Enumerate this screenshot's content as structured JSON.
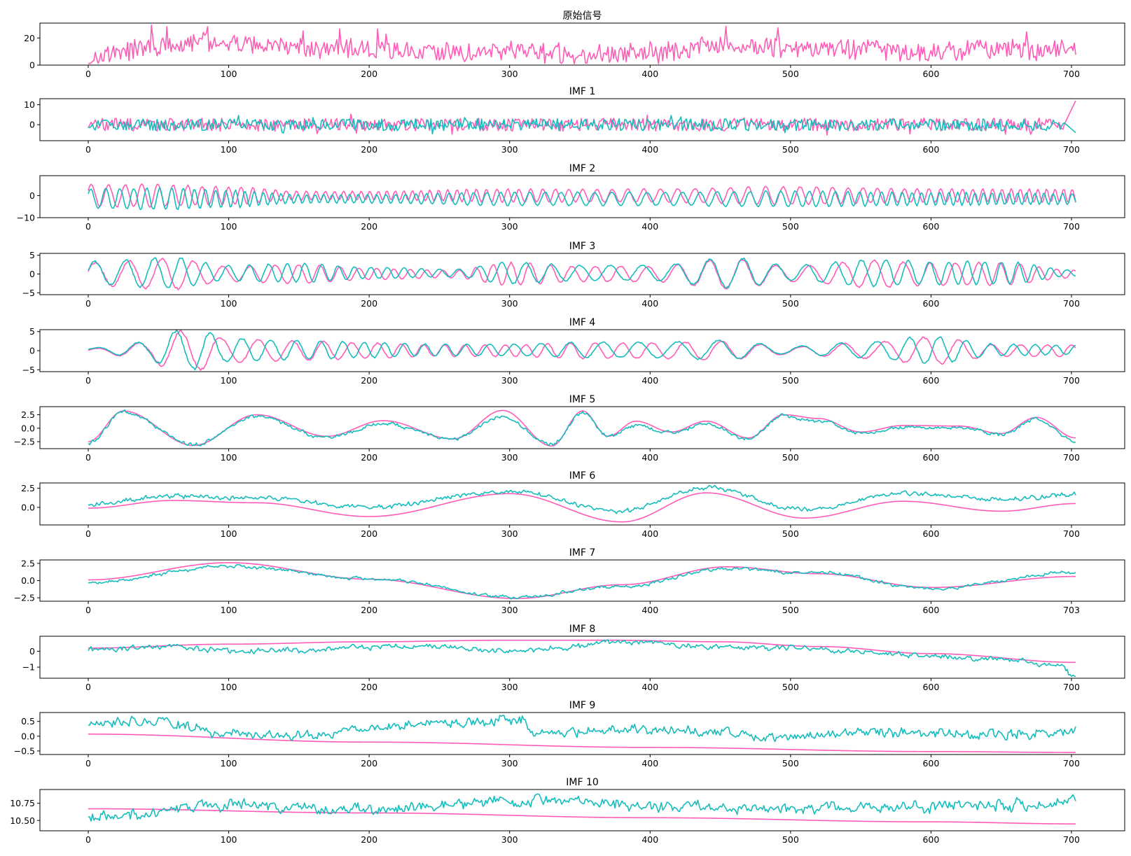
{
  "colors": {
    "pink": "#ff5cb8",
    "teal": "#17bcbc",
    "axis": "#000000",
    "background": "#ffffff"
  },
  "chart_data": [
    {
      "type": "line",
      "title": "原始信号",
      "x_range": [
        0,
        703
      ],
      "ylim": [
        0,
        31
      ],
      "yticks": [
        0,
        20
      ],
      "ytick_labels": [
        "0",
        "20"
      ],
      "xticks": [
        0,
        100,
        200,
        300,
        400,
        500,
        600,
        700
      ],
      "series": [
        {
          "color": "pink",
          "kind": "signal",
          "amp": 6.5,
          "mean": 11,
          "x": [
            0,
            50,
            100,
            150,
            200,
            250,
            300,
            350,
            400,
            450,
            500,
            550,
            600,
            650,
            703
          ],
          "y": [
            6,
            14,
            16,
            12,
            11,
            9,
            10,
            8,
            9,
            14,
            12,
            12,
            10,
            12,
            11
          ]
        }
      ]
    },
    {
      "type": "line",
      "title": "IMF 1",
      "x_range": [
        0,
        703
      ],
      "ylim": [
        -8,
        13
      ],
      "yticks": [
        0,
        10
      ],
      "ytick_labels": [
        "0",
        "10"
      ],
      "xticks": [
        0,
        100,
        200,
        300,
        400,
        500,
        600,
        700
      ],
      "series": [
        {
          "color": "pink",
          "kind": "noise",
          "amp": 3.2,
          "mean": 0,
          "tail_end": 12
        },
        {
          "color": "teal",
          "kind": "noise",
          "amp": 3.0,
          "mean": 0,
          "tail_end": -4
        }
      ]
    },
    {
      "type": "line",
      "title": "IMF 2",
      "x_range": [
        0,
        703
      ],
      "ylim": [
        -10,
        9
      ],
      "yticks": [
        -10,
        0
      ],
      "ytick_labels": [
        "−10",
        "0"
      ],
      "xticks": [
        0,
        100,
        200,
        300,
        400,
        500,
        600,
        700
      ],
      "series": [
        {
          "color": "pink",
          "kind": "osc",
          "period": 11,
          "mean": 0,
          "amp_x": [
            0,
            50,
            100,
            150,
            200,
            300,
            400,
            500,
            600,
            703
          ],
          "amp_y": [
            5,
            5,
            4,
            2,
            2,
            3,
            3,
            4,
            3,
            3
          ]
        },
        {
          "color": "teal",
          "kind": "osc",
          "period": 11,
          "mean": -1.5,
          "amp_x": [
            0,
            50,
            100,
            150,
            200,
            300,
            400,
            500,
            600,
            703
          ],
          "amp_y": [
            4.5,
            5,
            4,
            2,
            2,
            3,
            3,
            3.5,
            3,
            2.5
          ]
        }
      ]
    },
    {
      "type": "line",
      "title": "IMF 3",
      "x_range": [
        0,
        703
      ],
      "ylim": [
        -5.5,
        5.5
      ],
      "yticks": [
        -5,
        0,
        5
      ],
      "ytick_labels": [
        "−5",
        "0",
        "5"
      ],
      "xticks": [
        0,
        100,
        200,
        300,
        400,
        500,
        600,
        700
      ],
      "series": [
        {
          "color": "pink",
          "kind": "osc",
          "period": 21,
          "mean": 0,
          "amp_x": [
            0,
            60,
            100,
            150,
            200,
            260,
            300,
            350,
            400,
            460,
            500,
            560,
            600,
            650,
            703
          ],
          "amp_y": [
            3,
            4,
            2,
            2.5,
            1.5,
            1,
            3,
            2,
            2,
            4,
            2,
            3.5,
            3,
            3,
            1
          ]
        },
        {
          "color": "teal",
          "kind": "osc",
          "period": 21,
          "mean": 0.3,
          "amp_x": [
            0,
            60,
            100,
            150,
            200,
            260,
            300,
            350,
            400,
            460,
            500,
            560,
            600,
            650,
            703
          ],
          "amp_y": [
            3,
            4,
            2,
            2.5,
            1.5,
            1,
            2.8,
            2,
            2,
            4,
            2,
            3.5,
            3,
            3,
            0.8
          ]
        }
      ]
    },
    {
      "type": "line",
      "title": "IMF 4",
      "x_range": [
        0,
        703
      ],
      "ylim": [
        -5.5,
        5.5
      ],
      "yticks": [
        -5,
        0,
        5
      ],
      "ytick_labels": [
        "−5",
        "0",
        "5"
      ],
      "xticks": [
        0,
        100,
        200,
        300,
        400,
        500,
        600,
        700
      ],
      "series": [
        {
          "color": "pink",
          "kind": "osc",
          "period": 26,
          "mean": 0,
          "amp_x": [
            0,
            40,
            60,
            80,
            100,
            150,
            200,
            250,
            300,
            350,
            400,
            450,
            500,
            550,
            600,
            650,
            703
          ],
          "amp_y": [
            0.5,
            2,
            5,
            5,
            3,
            2.5,
            2,
            1.5,
            1.5,
            2,
            2,
            2.5,
            1,
            2,
            3.5,
            1.5,
            1.5
          ]
        },
        {
          "color": "teal",
          "kind": "osc",
          "period": 26,
          "mean": 0.2,
          "amp_x": [
            0,
            40,
            60,
            80,
            100,
            150,
            200,
            250,
            300,
            350,
            400,
            450,
            500,
            550,
            600,
            650,
            703
          ],
          "amp_y": [
            0.5,
            2,
            5,
            5,
            3,
            2.5,
            2,
            1.5,
            1.5,
            2,
            2,
            2.5,
            1,
            2,
            3.5,
            1.5,
            1.2
          ]
        }
      ]
    },
    {
      "type": "line",
      "title": "IMF 5",
      "x_range": [
        0,
        703
      ],
      "ylim": [
        -3.8,
        4
      ],
      "yticks": [
        -2.5,
        0,
        2.5
      ],
      "ytick_labels": [
        "−2.5",
        "0.0",
        "2.5"
      ],
      "xticks": [
        0,
        100,
        200,
        300,
        400,
        500,
        600,
        700
      ],
      "series": [
        {
          "color": "pink",
          "kind": "smooth",
          "x": [
            0,
            25,
            75,
            120,
            170,
            210,
            260,
            295,
            330,
            352,
            370,
            390,
            415,
            440,
            470,
            495,
            520,
            550,
            580,
            620,
            650,
            675,
            703
          ],
          "y": [
            -2.5,
            3.2,
            -3.2,
            2.5,
            -1.5,
            1.4,
            -2,
            3.3,
            -3.3,
            3.2,
            -1.5,
            1.3,
            -0.7,
            1.3,
            -1.8,
            2.5,
            1.8,
            -0.7,
            0.5,
            0.4,
            -1,
            2,
            -1.8
          ]
        },
        {
          "color": "teal",
          "kind": "smooth",
          "noise": 0.25,
          "x": [
            0,
            25,
            75,
            120,
            170,
            210,
            260,
            295,
            330,
            352,
            370,
            390,
            415,
            440,
            470,
            495,
            520,
            550,
            580,
            620,
            650,
            675,
            703
          ],
          "y": [
            -2.8,
            2.9,
            -3,
            2.2,
            -1.7,
            0.8,
            -2,
            2.2,
            -3,
            2.8,
            -1.6,
            0.5,
            -0.8,
            0.8,
            -2,
            2.4,
            1.2,
            -0.9,
            0.2,
            0,
            -1.1,
            1.6,
            -2.5
          ]
        }
      ]
    },
    {
      "type": "line",
      "title": "IMF 6",
      "x_range": [
        0,
        703
      ],
      "ylim": [
        -2.3,
        3.2
      ],
      "yticks": [
        0,
        2.5
      ],
      "ytick_labels": [
        "0.0",
        "2.5"
      ],
      "xticks": [
        0,
        100,
        200,
        300,
        400,
        500,
        600,
        700
      ],
      "series": [
        {
          "color": "pink",
          "kind": "smooth",
          "x": [
            0,
            60,
            120,
            200,
            300,
            380,
            440,
            510,
            580,
            650,
            703
          ],
          "y": [
            -0.1,
            0.9,
            0.6,
            -1.2,
            1.8,
            -1.9,
            1.9,
            -1.4,
            0.8,
            -0.5,
            0.5
          ]
        },
        {
          "color": "teal",
          "kind": "smooth",
          "noise": 0.22,
          "x": [
            0,
            60,
            120,
            200,
            300,
            380,
            440,
            510,
            580,
            650,
            703
          ],
          "y": [
            0.4,
            1.5,
            1.2,
            0,
            2.1,
            -0.4,
            2.6,
            -0.3,
            1.8,
            1.1,
            1.7
          ]
        }
      ]
    },
    {
      "type": "line",
      "title": "IMF 7",
      "x_range": [
        0,
        703
      ],
      "ylim": [
        -3,
        3
      ],
      "yticks": [
        -2.5,
        0,
        2.5
      ],
      "ytick_labels": [
        "−2.5",
        "0.0",
        "2.5"
      ],
      "xticks": [
        0,
        100,
        200,
        300,
        400,
        500,
        600,
        703
      ],
      "series": [
        {
          "color": "pink",
          "kind": "smooth",
          "x": [
            0,
            100,
            200,
            305,
            380,
            455,
            520,
            600,
            703
          ],
          "y": [
            0.1,
            2.6,
            0.2,
            -2.6,
            -0.6,
            2,
            1,
            -1,
            0.6
          ]
        },
        {
          "color": "teal",
          "kind": "smooth",
          "noise": 0.18,
          "x": [
            0,
            100,
            200,
            305,
            380,
            455,
            520,
            600,
            703
          ],
          "y": [
            -0.3,
            2.1,
            0.3,
            -2.4,
            -0.9,
            1.7,
            1.1,
            -1.2,
            1.2
          ]
        }
      ]
    },
    {
      "type": "line",
      "title": "IMF 8",
      "x_range": [
        0,
        703
      ],
      "ylim": [
        -1.7,
        0.95
      ],
      "yticks": [
        -1,
        0
      ],
      "ytick_labels": [
        "−1",
        "0"
      ],
      "xticks": [
        0,
        100,
        200,
        300,
        400,
        500,
        600,
        700
      ],
      "series": [
        {
          "color": "pink",
          "kind": "smooth",
          "x": [
            0,
            100,
            200,
            300,
            370,
            450,
            520,
            600,
            703
          ],
          "y": [
            0.2,
            0.45,
            0.6,
            0.7,
            0.7,
            0.6,
            0.3,
            -0.15,
            -0.7
          ]
        },
        {
          "color": "teal",
          "kind": "smooth",
          "noise": 0.12,
          "x": [
            0,
            60,
            100,
            150,
            200,
            250,
            300,
            350,
            370,
            450,
            500,
            550,
            600,
            650,
            690,
            703
          ],
          "y": [
            0.1,
            0.3,
            0,
            0.1,
            0.3,
            0.3,
            0,
            0.3,
            0.6,
            0.3,
            0.2,
            0,
            -0.3,
            -0.5,
            -0.9,
            -1.6
          ]
        }
      ]
    },
    {
      "type": "line",
      "title": "IMF 9",
      "x_range": [
        0,
        703
      ],
      "ylim": [
        -0.62,
        0.8
      ],
      "yticks": [
        -0.5,
        0,
        0.5
      ],
      "ytick_labels": [
        "−0.5",
        "0.0",
        "0.5"
      ],
      "xticks": [
        0,
        100,
        200,
        300,
        400,
        500,
        600,
        700
      ],
      "series": [
        {
          "color": "pink",
          "kind": "smooth",
          "x": [
            0,
            200,
            400,
            600,
            703
          ],
          "y": [
            0.07,
            -0.2,
            -0.38,
            -0.52,
            -0.55
          ]
        },
        {
          "color": "teal",
          "kind": "smooth",
          "noise": 0.12,
          "x": [
            0,
            50,
            100,
            150,
            200,
            250,
            310,
            315,
            400,
            500,
            550,
            600,
            650,
            703
          ],
          "y": [
            0.45,
            0.5,
            0.1,
            0,
            0.3,
            0.45,
            0.55,
            0.1,
            0.25,
            -0.05,
            0.15,
            0.1,
            0.05,
            0.15
          ]
        }
      ]
    },
    {
      "type": "line",
      "title": "IMF 10",
      "x_range": [
        0,
        703
      ],
      "ylim": [
        10.35,
        10.95
      ],
      "yticks": [
        10.5,
        10.75
      ],
      "ytick_labels": [
        "10.50",
        "10.75"
      ],
      "xticks": [
        0,
        100,
        200,
        300,
        400,
        500,
        600,
        700
      ],
      "series": [
        {
          "color": "pink",
          "kind": "smooth",
          "x": [
            0,
            200,
            400,
            600,
            703
          ],
          "y": [
            10.67,
            10.61,
            10.54,
            10.48,
            10.45
          ]
        },
        {
          "color": "teal",
          "kind": "smooth",
          "noise": 0.06,
          "x": [
            0,
            100,
            200,
            300,
            350,
            400,
            500,
            600,
            703
          ],
          "y": [
            10.55,
            10.72,
            10.65,
            10.78,
            10.8,
            10.7,
            10.68,
            10.7,
            10.75
          ]
        }
      ]
    }
  ]
}
